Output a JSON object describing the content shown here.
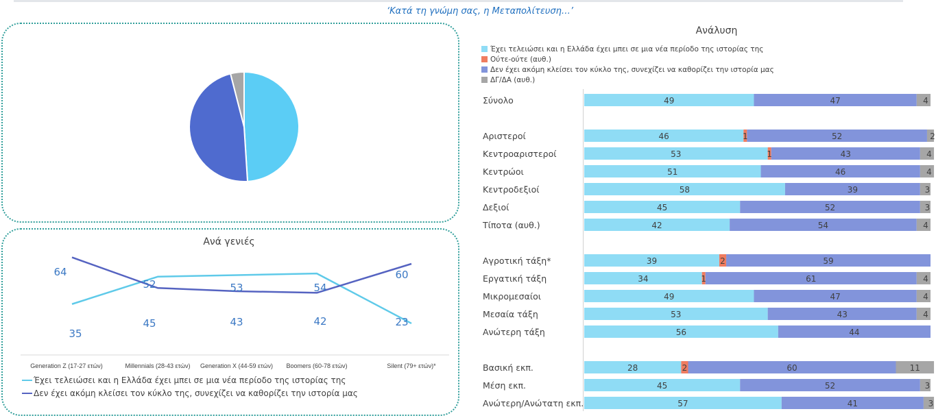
{
  "main_title": "‘Κατά τη γνώμη σας, η Μεταπολίτευση…’",
  "colors": {
    "light_blue": "#8fdcf5",
    "pie_light": "#5bcdf5",
    "dark_blue": "#8294db",
    "pie_dark": "#4f6bcf",
    "line_light": "#5fcae9",
    "line_dark": "#5563c1",
    "orange": "#ef7c60",
    "grey": "#a6a6a6",
    "value_text": "#3b78c4"
  },
  "chart_data": [
    {
      "type": "pie",
      "title": "",
      "slices": [
        {
          "name": "Έχει τελειώσει και η Ελλάδα έχει μπει σε μια νέα περίοδο της ιστορίας της",
          "value": 49
        },
        {
          "name": "Δεν έχει ακόμη κλείσει τον κύκλο της, συνεχίζει να καθορίζει την ιστορία μας",
          "value": 47
        },
        {
          "name": "ΔΓ/ΔΑ (αυθ.)",
          "value": 4
        }
      ]
    },
    {
      "type": "line",
      "title": "Ανά γενιές",
      "categories": [
        "Generation Z (17-27 ετών)",
        "Millennials (28-43 ετών)",
        "Generation X (44-59 ετών)",
        "Boomers (60-78 ετών)",
        "Silent (79+ ετών)*"
      ],
      "ylim": [
        0,
        80
      ],
      "series": [
        {
          "name": "Έχει τελειώσει και η Ελλάδα έχει μπει σε μια νέα περίοδο της ιστορίας της",
          "values": [
            35,
            52,
            53,
            54,
            23
          ]
        },
        {
          "name": "Δεν έχει ακόμη κλείσει τον κύκλο της, συνεχίζει να καθορίζει την ιστορία μας",
          "values": [
            64,
            45,
            43,
            42,
            60
          ]
        }
      ],
      "legend": "bottom-left"
    },
    {
      "type": "bar",
      "orientation": "horizontal",
      "stacked": true,
      "title": "Ανάλυση",
      "legend": "top-left",
      "series": [
        {
          "name": "Έχει τελειώσει και η Ελλάδα έχει μπει σε μια νέα περίοδο της ιστορίας της"
        },
        {
          "name": "Ούτε-ούτε (αυθ.)"
        },
        {
          "name": "Δεν έχει ακόμη κλείσει τον κύκλο της, συνεχίζει να καθορίζει την ιστορία μας"
        },
        {
          "name": "ΔΓ/ΔΑ (αυθ.)"
        }
      ],
      "groups": [
        {
          "rows": [
            {
              "label": "Σύνολο",
              "values": [
                49,
                0,
                47,
                4
              ]
            }
          ]
        },
        {
          "rows": [
            {
              "label": "Αριστεροί",
              "values": [
                46,
                1,
                52,
                2
              ]
            },
            {
              "label": "Κεντροαριστεροί",
              "values": [
                53,
                1,
                43,
                4
              ]
            },
            {
              "label": "Κεντρώοι",
              "values": [
                51,
                0,
                46,
                4
              ]
            },
            {
              "label": "Κεντροδεξιοί",
              "values": [
                58,
                0,
                39,
                3
              ]
            },
            {
              "label": "Δεξιοί",
              "values": [
                45,
                0,
                52,
                3
              ]
            },
            {
              "label": "Τίποτα (αυθ.)",
              "values": [
                42,
                0,
                54,
                4
              ]
            }
          ]
        },
        {
          "rows": [
            {
              "label": "Αγροτική τάξη*",
              "values": [
                39,
                2,
                59,
                0
              ]
            },
            {
              "label": "Εργατική τάξη",
              "values": [
                34,
                1,
                61,
                4
              ]
            },
            {
              "label": "Μικρομεσαίοι",
              "values": [
                49,
                0,
                47,
                4
              ]
            },
            {
              "label": "Μεσαία τάξη",
              "values": [
                53,
                0,
                43,
                4
              ]
            },
            {
              "label": "Ανώτερη τάξη",
              "values": [
                56,
                0,
                44,
                0
              ]
            }
          ]
        },
        {
          "rows": [
            {
              "label": "Βασική εκπ.",
              "values": [
                28,
                2,
                60,
                11
              ]
            },
            {
              "label": "Μέση εκπ.",
              "values": [
                45,
                0,
                52,
                3
              ]
            },
            {
              "label": "Ανώτερη/Ανώτατη εκπ.",
              "values": [
                57,
                0,
                41,
                3
              ]
            }
          ]
        }
      ]
    }
  ]
}
